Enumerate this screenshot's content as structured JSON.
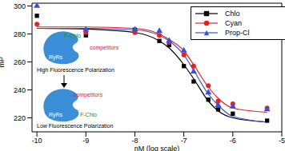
{
  "chart_data": {
    "type": "scatter",
    "x_label": "nM (log scale)",
    "y_label": "mP",
    "x": [
      -10,
      -9,
      -8,
      -7.5,
      -7.3,
      -7,
      -6.8,
      -6.5,
      -6.3,
      -6,
      -5.3
    ],
    "xlim": [
      -10.1,
      -5
    ],
    "xticks": [
      -10,
      -9,
      -8,
      -7,
      -6,
      -5
    ],
    "ylim": [
      210,
      302
    ],
    "yticks": [
      220,
      240,
      260,
      280,
      300
    ],
    "legend": "upper right",
    "series": [
      {
        "name": "Chlo",
        "color": "#000000",
        "marker": "square",
        "line_style": "solid",
        "values": [
          293,
          279,
          283,
          275,
          272,
          257,
          246,
          233,
          226,
          223,
          218
        ],
        "fit": [
          284,
          283.5,
          281,
          275,
          270,
          258,
          248,
          232,
          225,
          220,
          217
        ]
      },
      {
        "name": "Cyan",
        "color": "#e8211f",
        "marker": "circle",
        "line_style": "solid",
        "values": [
          287,
          281,
          281,
          279,
          274,
          265,
          257,
          243,
          232,
          230,
          227
        ],
        "fit": [
          285,
          285,
          284,
          280,
          276,
          268,
          258,
          242,
          234,
          227,
          224
        ]
      },
      {
        "name": "Prop-Cl",
        "color": "#3a4fd8",
        "marker": "triangle",
        "line_style": "solid",
        "values": [
          300,
          283,
          283,
          282,
          275,
          268,
          253,
          238,
          229,
          228,
          226
        ],
        "fit": [
          284,
          284,
          283,
          279,
          275,
          265,
          254,
          237,
          229,
          221,
          217
        ]
      }
    ],
    "annotations": {
      "high": {
        "protein": "RyRs",
        "ligand": "F-Chlo",
        "competitor": "competitors",
        "caption": "High Fluorescence Polarization"
      },
      "low": {
        "protein": "RyRs",
        "ligand": "F-Chlo",
        "competitor": "competitors",
        "caption": "Low Fluorescence Polarization"
      }
    }
  }
}
